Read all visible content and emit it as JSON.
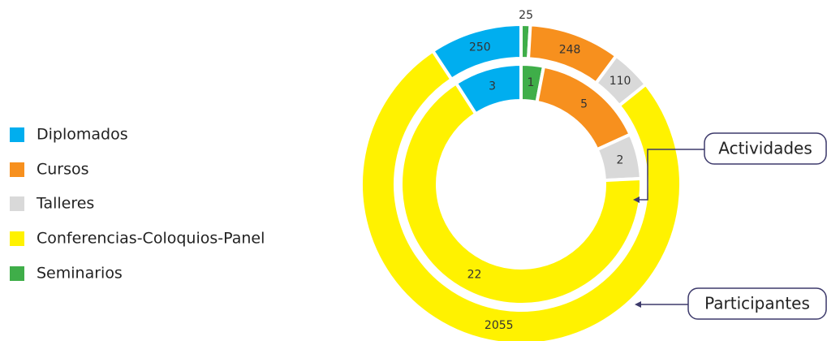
{
  "chart_data": {
    "type": "donut",
    "categories": [
      "Seminarios",
      "Cursos",
      "Talleres",
      "Conferencias-Coloquios-Panel",
      "Diplomados"
    ],
    "colors": [
      "#3fae49",
      "#f7901e",
      "#d9d9d9",
      "#fff200",
      "#00aeef"
    ],
    "series": [
      {
        "name": "Actividades",
        "values": [
          1,
          5,
          2,
          22,
          3
        ]
      },
      {
        "name": "Participantes",
        "values": [
          25,
          248,
          110,
          2055,
          250
        ]
      }
    ]
  }
}
